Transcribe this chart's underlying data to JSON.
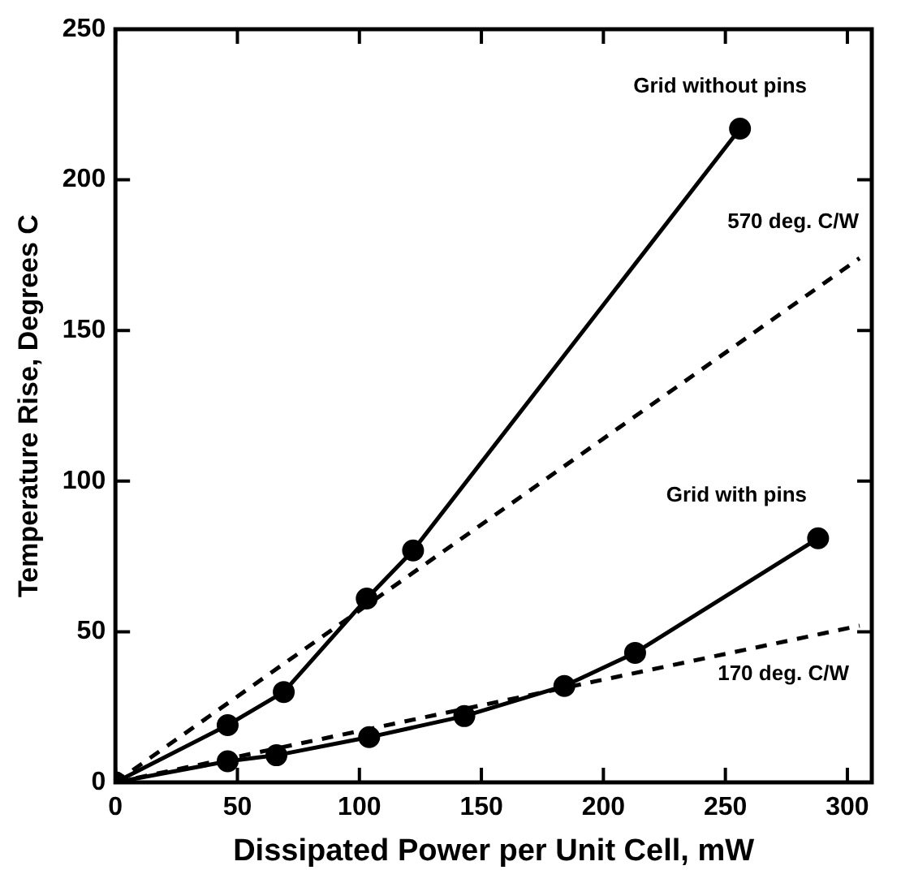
{
  "chart_data": {
    "type": "line",
    "xlabel": "Dissipated Power per Unit Cell, mW",
    "ylabel": "Temperature Rise, Degrees C",
    "xlim": [
      0,
      310
    ],
    "ylim": [
      0,
      250
    ],
    "xticks": [
      0,
      50,
      100,
      150,
      200,
      250,
      300
    ],
    "yticks": [
      0,
      50,
      100,
      150,
      200,
      250
    ],
    "grid": false,
    "legend": "right",
    "series": [
      {
        "name": "Grid without pins",
        "color": "#000000",
        "marker": "circle",
        "line_style": "solid",
        "x": [
          0,
          46,
          69,
          103,
          122,
          256
        ],
        "values": [
          0,
          19,
          30,
          61,
          77,
          217
        ]
      },
      {
        "name": "Grid with pins",
        "color": "#000000",
        "marker": "circle",
        "line_style": "solid",
        "x": [
          0,
          46,
          66,
          104,
          143,
          184,
          213,
          288
        ],
        "values": [
          0,
          7,
          9,
          15,
          22,
          32,
          43,
          81
        ]
      },
      {
        "name": "570 deg. C/W",
        "color": "#000000",
        "marker": "none",
        "line_style": "dashed",
        "x": [
          0,
          305
        ],
        "values": [
          0,
          174
        ]
      },
      {
        "name": "170 deg. C/W",
        "color": "#000000",
        "marker": "none",
        "line_style": "dashed",
        "x": [
          0,
          305
        ],
        "values": [
          0,
          52
        ]
      }
    ]
  }
}
